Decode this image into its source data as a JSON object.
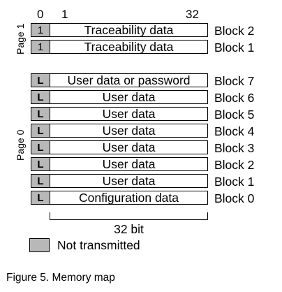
{
  "bit_numbers": {
    "start0": "0",
    "start1": "1",
    "end": "32"
  },
  "page1": {
    "label": "Page 1",
    "rows": [
      {
        "marker": "1",
        "text": "Traceability data",
        "block": "Block 2"
      },
      {
        "marker": "1",
        "text": "Traceability data",
        "block": "Block 1"
      }
    ]
  },
  "page0": {
    "label": "Page 0",
    "rows": [
      {
        "marker": "L",
        "text": "User data or password",
        "block": "Block 7"
      },
      {
        "marker": "L",
        "text": "User data",
        "block": "Block 6"
      },
      {
        "marker": "L",
        "text": "User data",
        "block": "Block 5"
      },
      {
        "marker": "L",
        "text": "User data",
        "block": "Block 4"
      },
      {
        "marker": "L",
        "text": "User data",
        "block": "Block 3"
      },
      {
        "marker": "L",
        "text": "User data",
        "block": "Block 2"
      },
      {
        "marker": "L",
        "text": "User data",
        "block": "Block 1"
      },
      {
        "marker": "L",
        "text": "Configuration data",
        "block": "Block 0"
      }
    ]
  },
  "width_label": "32 bit",
  "legend": {
    "label": "Not transmitted",
    "color": "#b8b8b8"
  },
  "caption": "Figure 5. Memory map"
}
